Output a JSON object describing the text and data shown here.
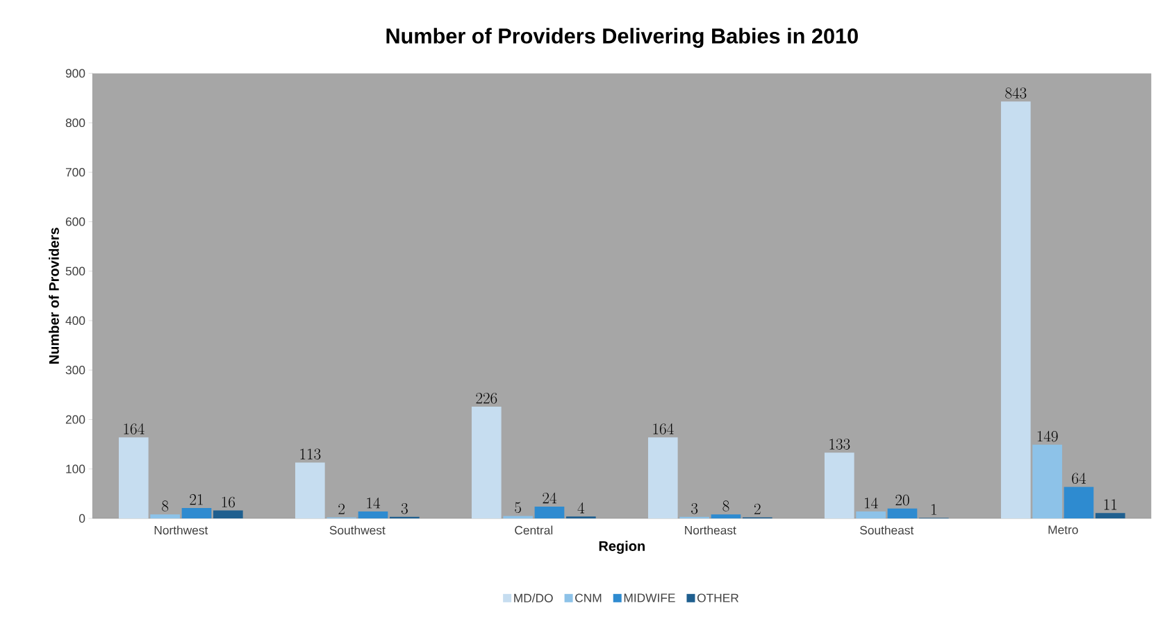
{
  "chart_data": {
    "type": "bar",
    "title": "Number of Providers Delivering Babies in 2010",
    "xlabel": "Region",
    "ylabel": "Number of Providers",
    "categories": [
      "Northwest",
      "Southwest",
      "Central",
      "Northeast",
      "Southeast",
      "Metro"
    ],
    "series": [
      {
        "name": "MD/DO",
        "color": "#c6ddf0",
        "values": [
          164,
          113,
          226,
          164,
          133,
          843
        ]
      },
      {
        "name": "CNM",
        "color": "#8dc2e8",
        "values": [
          8,
          2,
          5,
          3,
          14,
          149
        ]
      },
      {
        "name": "MIDWIFE",
        "color": "#2e8bd0",
        "values": [
          21,
          14,
          24,
          8,
          20,
          64
        ]
      },
      {
        "name": "OTHER",
        "color": "#1f5f8f",
        "values": [
          16,
          3,
          4,
          2,
          1,
          11
        ]
      }
    ],
    "ylim": [
      0,
      900
    ],
    "yticks": [
      0,
      100,
      200,
      300,
      400,
      500,
      600,
      700,
      800,
      900
    ],
    "data_labels": true,
    "legend": "bottom",
    "grid": false
  }
}
